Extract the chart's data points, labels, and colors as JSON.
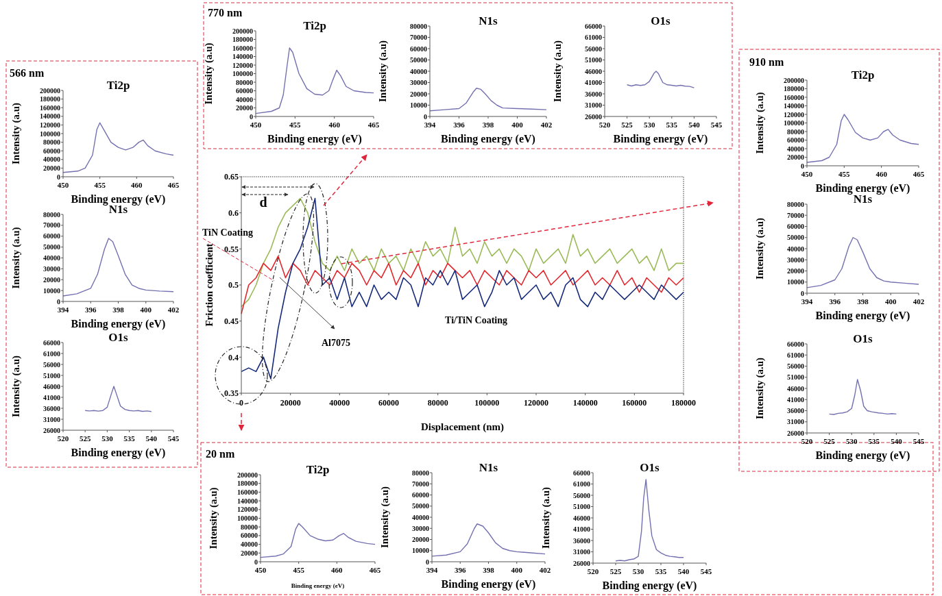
{
  "chart_data": [
    {
      "type": "line",
      "xlabel": "Displacement (nm)",
      "ylabel": "Friction coefficient",
      "xlim": [
        0,
        180000
      ],
      "ylim": [
        0.35,
        0.65
      ],
      "xticks": [
        0,
        20000,
        40000,
        60000,
        80000,
        100000,
        120000,
        140000,
        160000,
        180000
      ],
      "yticks": [
        0.35,
        0.4,
        0.45,
        0.5,
        0.55,
        0.6,
        0.65
      ],
      "annotations": [
        "TiN Coating",
        "Ti/TiN Coating",
        "Al7075",
        "d"
      ],
      "x": [
        0,
        3000,
        6000,
        9000,
        12000,
        15000,
        18000,
        21000,
        24000,
        27000,
        30000,
        33000,
        36000,
        39000,
        42000,
        45000,
        48000,
        51000,
        54000,
        57000,
        60000,
        63000,
        66000,
        69000,
        72000,
        75000,
        78000,
        81000,
        84000,
        87000,
        90000,
        93000,
        96000,
        99000,
        102000,
        105000,
        108000,
        111000,
        114000,
        117000,
        120000,
        123000,
        126000,
        129000,
        132000,
        135000,
        138000,
        141000,
        144000,
        147000,
        150000,
        153000,
        156000,
        159000,
        162000,
        165000,
        168000,
        171000,
        174000,
        177000,
        180000
      ],
      "series": [
        {
          "color": "#9bbb59",
          "values": [
            0.47,
            0.48,
            0.5,
            0.53,
            0.55,
            0.58,
            0.6,
            0.61,
            0.62,
            0.6,
            0.56,
            0.53,
            0.52,
            0.54,
            0.52,
            0.55,
            0.53,
            0.54,
            0.52,
            0.55,
            0.53,
            0.54,
            0.52,
            0.55,
            0.53,
            0.56,
            0.54,
            0.55,
            0.53,
            0.58,
            0.54,
            0.55,
            0.53,
            0.56,
            0.54,
            0.55,
            0.53,
            0.55,
            0.54,
            0.52,
            0.55,
            0.53,
            0.54,
            0.55,
            0.53,
            0.57,
            0.54,
            0.55,
            0.53,
            0.54,
            0.55,
            0.53,
            0.54,
            0.55,
            0.53,
            0.54,
            0.52,
            0.55,
            0.52,
            0.53,
            0.53
          ]
        },
        {
          "color": "#e3262b",
          "values": [
            0.46,
            0.5,
            0.51,
            0.53,
            0.52,
            0.54,
            0.51,
            0.53,
            0.52,
            0.5,
            0.52,
            0.51,
            0.5,
            0.52,
            0.51,
            0.53,
            0.52,
            0.5,
            0.52,
            0.51,
            0.53,
            0.5,
            0.52,
            0.51,
            0.53,
            0.5,
            0.52,
            0.51,
            0.53,
            0.52,
            0.51,
            0.52,
            0.5,
            0.52,
            0.51,
            0.5,
            0.52,
            0.51,
            0.5,
            0.52,
            0.51,
            0.52,
            0.5,
            0.51,
            0.52,
            0.5,
            0.51,
            0.52,
            0.5,
            0.51,
            0.5,
            0.52,
            0.5,
            0.51,
            0.49,
            0.51,
            0.5,
            0.49,
            0.51,
            0.5,
            0.51
          ]
        },
        {
          "color": "#14297a",
          "values": [
            0.38,
            0.385,
            0.38,
            0.4,
            0.37,
            0.44,
            0.49,
            0.53,
            0.55,
            0.58,
            0.62,
            0.5,
            0.51,
            0.48,
            0.51,
            0.47,
            0.49,
            0.47,
            0.5,
            0.48,
            0.49,
            0.48,
            0.51,
            0.5,
            0.47,
            0.51,
            0.5,
            0.52,
            0.5,
            0.52,
            0.48,
            0.49,
            0.5,
            0.47,
            0.49,
            0.52,
            0.5,
            0.51,
            0.48,
            0.49,
            0.5,
            0.48,
            0.49,
            0.47,
            0.5,
            0.51,
            0.48,
            0.47,
            0.49,
            0.48,
            0.5,
            0.49,
            0.48,
            0.49,
            0.5,
            0.49,
            0.48,
            0.5,
            0.49,
            0.48,
            0.49
          ]
        }
      ]
    },
    {
      "type": "line",
      "title": "Ti2p",
      "xlabel": "Binding energy (eV)",
      "ylabel": "Intensity (a.u)",
      "annotations": [
        "770 nm"
      ],
      "xlim": [
        450,
        465
      ],
      "xticks": [
        450,
        455,
        460,
        465
      ],
      "ylim": [
        0,
        200000
      ],
      "yticks": [
        0,
        20000,
        40000,
        60000,
        80000,
        100000,
        120000,
        140000,
        160000,
        180000,
        200000
      ],
      "series": [
        {
          "color": "#7370b0",
          "x": [
            450,
            452,
            453,
            453.5,
            454,
            454.3,
            454.7,
            455.5,
            456.5,
            457.5,
            458.5,
            459.3,
            459.8,
            460.3,
            460.8,
            461.5,
            462.5,
            464,
            465
          ],
          "values": [
            7000,
            12000,
            20000,
            50000,
            120000,
            160000,
            150000,
            100000,
            65000,
            52000,
            50000,
            60000,
            85000,
            108000,
            95000,
            70000,
            60000,
            56000,
            55000
          ]
        }
      ]
    },
    {
      "type": "line",
      "title": "N1s",
      "xlabel": "Binding energy (eV)",
      "ylabel": "Intensity (a.u)",
      "xlim": [
        394,
        402
      ],
      "xticks": [
        394,
        396,
        398,
        400,
        402
      ],
      "ylim": [
        0,
        80000
      ],
      "yticks": [
        0,
        10000,
        20000,
        30000,
        40000,
        50000,
        60000,
        70000,
        80000
      ],
      "series": [
        {
          "color": "#7370b0",
          "x": [
            394,
            395,
            396,
            396.5,
            397,
            397.2,
            397.5,
            397.8,
            398.2,
            398.6,
            399,
            400,
            401,
            402
          ],
          "values": [
            5000,
            6000,
            7000,
            12000,
            22000,
            25000,
            24000,
            20000,
            14000,
            10000,
            7500,
            7000,
            6500,
            6000
          ]
        }
      ]
    },
    {
      "type": "line",
      "title": "O1s",
      "xlabel": "Binding energy (eV)",
      "ylabel": "Intensity (a.u)",
      "xlim": [
        520,
        545
      ],
      "xticks": [
        520,
        525,
        530,
        535,
        540,
        545
      ],
      "ylim": [
        26000,
        66000
      ],
      "yticks": [
        26000,
        31000,
        36000,
        41000,
        46000,
        51000,
        56000,
        61000,
        66000
      ],
      "series": [
        {
          "color": "#7370b0",
          "x": [
            525,
            526,
            527,
            528,
            529,
            530,
            531,
            531.5,
            532,
            533,
            534,
            535,
            536,
            537,
            538,
            539,
            540
          ],
          "values": [
            40000,
            39500,
            40000,
            39700,
            40000,
            41500,
            45000,
            46000,
            45000,
            41000,
            40000,
            39800,
            39500,
            39800,
            39400,
            39300,
            38700
          ]
        }
      ]
    },
    {
      "type": "line",
      "title": "Ti2p",
      "xlabel": "Binding energy (eV)",
      "ylabel": "Intensity (a.u)",
      "annotations": [
        "566 nm"
      ],
      "xlim": [
        450,
        465
      ],
      "xticks": [
        450,
        455,
        460,
        465
      ],
      "ylim": [
        0,
        200000
      ],
      "yticks": [
        0,
        20000,
        40000,
        60000,
        80000,
        100000,
        120000,
        140000,
        160000,
        180000,
        200000
      ],
      "series": [
        {
          "color": "#7370b0",
          "x": [
            450,
            452,
            453,
            454,
            454.6,
            455,
            455.5,
            456.5,
            457.5,
            458.5,
            459.5,
            460.3,
            460.9,
            461.5,
            462.5,
            464,
            465
          ],
          "values": [
            10000,
            13000,
            20000,
            50000,
            110000,
            125000,
            110000,
            80000,
            68000,
            62000,
            68000,
            80000,
            85000,
            72000,
            60000,
            53000,
            50000
          ]
        }
      ]
    },
    {
      "type": "line",
      "title": "N1s",
      "xlabel": "Binding energy (eV)",
      "ylabel": "Intensity (a.u)",
      "xlim": [
        394,
        402
      ],
      "xticks": [
        394,
        396,
        398,
        400,
        402
      ],
      "ylim": [
        0,
        80000
      ],
      "yticks": [
        0,
        10000,
        20000,
        30000,
        40000,
        50000,
        60000,
        70000,
        80000
      ],
      "series": [
        {
          "color": "#7370b0",
          "x": [
            394,
            395,
            396,
            396.5,
            397,
            397.3,
            397.6,
            398,
            398.5,
            399,
            399.5,
            400,
            401,
            402
          ],
          "values": [
            5000,
            7000,
            12000,
            25000,
            48000,
            58000,
            55000,
            42000,
            25000,
            15000,
            12000,
            10500,
            9500,
            9000
          ]
        }
      ]
    },
    {
      "type": "line",
      "title": "O1s",
      "xlabel": "Binding energy (eV)",
      "ylabel": "Intensity (a.u)",
      "xlim": [
        520,
        545
      ],
      "xticks": [
        520,
        525,
        530,
        535,
        540,
        545
      ],
      "ylim": [
        26000,
        66000
      ],
      "yticks": [
        26000,
        31000,
        36000,
        41000,
        46000,
        51000,
        56000,
        61000,
        66000
      ],
      "series": [
        {
          "color": "#7370b0",
          "x": [
            525,
            526,
            527,
            528,
            529,
            530,
            531,
            531.5,
            532,
            533,
            534,
            535,
            536,
            537,
            538,
            539,
            540
          ],
          "values": [
            35000,
            34800,
            35000,
            34700,
            35000,
            36500,
            43000,
            46000,
            43000,
            37000,
            35500,
            35000,
            34800,
            35000,
            34600,
            34800,
            34500
          ]
        }
      ]
    },
    {
      "type": "line",
      "title": "Ti2p",
      "xlabel": "Binding energy (eV)",
      "ylabel": "Intensity (a.u)",
      "annotations": [
        "910 nm"
      ],
      "xlim": [
        450,
        465
      ],
      "xticks": [
        450,
        455,
        460,
        465
      ],
      "ylim": [
        0,
        200000
      ],
      "yticks": [
        0,
        20000,
        40000,
        60000,
        80000,
        100000,
        120000,
        140000,
        160000,
        180000,
        200000
      ],
      "series": [
        {
          "color": "#7370b0",
          "x": [
            450,
            452,
            453,
            454,
            454.6,
            455,
            455.5,
            456.5,
            457.5,
            458.5,
            459.5,
            460.3,
            460.9,
            461.5,
            462.5,
            464,
            465
          ],
          "values": [
            8000,
            12000,
            20000,
            50000,
            105000,
            120000,
            108000,
            78000,
            65000,
            60000,
            65000,
            80000,
            85000,
            72000,
            60000,
            52000,
            50000
          ]
        }
      ]
    },
    {
      "type": "line",
      "title": "N1s",
      "xlabel": "Binding energy (eV)",
      "ylabel": "Intensity (a.u)",
      "xlim": [
        394,
        402
      ],
      "xticks": [
        394,
        396,
        398,
        400,
        402
      ],
      "ylim": [
        0,
        80000
      ],
      "yticks": [
        0,
        10000,
        20000,
        30000,
        40000,
        50000,
        60000,
        70000,
        80000
      ],
      "series": [
        {
          "color": "#7370b0",
          "x": [
            394,
            395,
            396,
            396.5,
            397,
            397.3,
            397.6,
            398,
            398.5,
            399,
            399.5,
            400,
            401,
            402
          ],
          "values": [
            5000,
            7000,
            12000,
            22000,
            42000,
            50000,
            48000,
            37000,
            22000,
            14000,
            11000,
            10000,
            9000,
            8000
          ]
        }
      ]
    },
    {
      "type": "line",
      "title": "O1s",
      "xlabel": "Binding energy (eV)",
      "ylabel": "Intensity (a.u)",
      "xlim": [
        520,
        545
      ],
      "xticks": [
        520,
        525,
        530,
        535,
        540,
        545
      ],
      "ylim": [
        26000,
        66000
      ],
      "yticks": [
        26000,
        31000,
        36000,
        41000,
        46000,
        51000,
        56000,
        61000,
        66000
      ],
      "series": [
        {
          "color": "#7370b0",
          "x": [
            525,
            526,
            527,
            528,
            529,
            530,
            530.7,
            531.3,
            532,
            532.7,
            533.5,
            534.5,
            536,
            537,
            538,
            539,
            540
          ],
          "values": [
            34500,
            34300,
            34800,
            35000,
            35500,
            37000,
            43000,
            50000,
            45000,
            38000,
            36000,
            35500,
            35000,
            34800,
            34500,
            34700,
            34500
          ]
        }
      ]
    },
    {
      "type": "line",
      "title": "Ti2p",
      "xlabel": "Binding energy (eV)",
      "ylabel": "Intensity (a.u)",
      "annotations": [
        "20 nm"
      ],
      "xlim": [
        450,
        465
      ],
      "xticks": [
        450,
        455,
        460,
        465
      ],
      "ylim": [
        0,
        200000
      ],
      "yticks": [
        0,
        20000,
        40000,
        60000,
        80000,
        100000,
        120000,
        140000,
        160000,
        180000,
        200000
      ],
      "series": [
        {
          "color": "#7370b0",
          "x": [
            450,
            452,
            453,
            454,
            454.6,
            455,
            455.5,
            456.5,
            457.5,
            458.5,
            459.5,
            460.3,
            460.9,
            461.5,
            462.5,
            464,
            465
          ],
          "values": [
            10000,
            13000,
            18000,
            35000,
            75000,
            88000,
            80000,
            60000,
            52000,
            48000,
            50000,
            60000,
            65000,
            56000,
            47000,
            42000,
            40000
          ]
        }
      ]
    },
    {
      "type": "line",
      "title": "N1s",
      "xlabel": "Binding energy (eV)",
      "ylabel": "Intensity (a.u)",
      "xlim": [
        394,
        402
      ],
      "xticks": [
        394,
        396,
        398,
        400,
        402
      ],
      "ylim": [
        0,
        80000
      ],
      "yticks": [
        0,
        10000,
        20000,
        30000,
        40000,
        50000,
        60000,
        70000,
        80000
      ],
      "series": [
        {
          "color": "#7370b0",
          "x": [
            394,
            395,
            396,
            396.5,
            397,
            397.2,
            397.6,
            398,
            398.5,
            399,
            399.5,
            400,
            401,
            402
          ],
          "values": [
            5000,
            6000,
            9000,
            16000,
            30000,
            34000,
            32000,
            26000,
            17000,
            12000,
            10000,
            9000,
            8000,
            7000
          ]
        }
      ]
    },
    {
      "type": "line",
      "title": "O1s",
      "xlabel": "Binding energy (eV)",
      "ylabel": "Intensity (a.u)",
      "xlim": [
        520,
        545
      ],
      "xticks": [
        520,
        525,
        530,
        535,
        540,
        545
      ],
      "ylim": [
        26000,
        66000
      ],
      "yticks": [
        26000,
        31000,
        36000,
        41000,
        46000,
        51000,
        56000,
        61000,
        66000
      ],
      "series": [
        {
          "color": "#7370b0",
          "x": [
            525,
            526,
            527,
            528,
            529,
            530,
            530.7,
            531.2,
            531.7,
            532.3,
            533,
            534,
            535,
            536,
            537,
            538,
            539,
            540
          ],
          "values": [
            27000,
            27200,
            27000,
            27500,
            27800,
            29000,
            40000,
            55000,
            63000,
            50000,
            38000,
            32000,
            30500,
            29500,
            29000,
            28800,
            28500,
            28500
          ]
        }
      ]
    }
  ]
}
